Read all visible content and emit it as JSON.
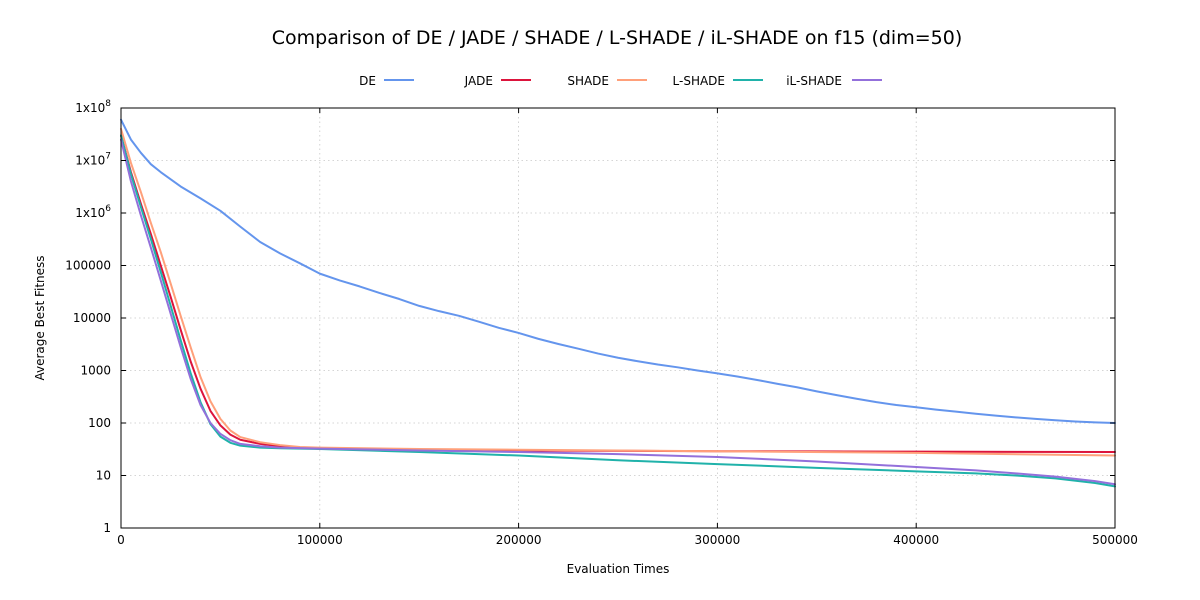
{
  "chart_data": {
    "type": "line",
    "title": "Comparison of DE / JADE / SHADE / L-SHADE / iL-SHADE on f15 (dim=50)",
    "xlabel": "Evaluation Times",
    "ylabel": "Average Best Fitness",
    "xlim": [
      0,
      500000
    ],
    "ylim": [
      1,
      100000000
    ],
    "yscale": "log",
    "grid": true,
    "legend_position": "top",
    "x_ticks": [
      {
        "value": 0,
        "label": "0"
      },
      {
        "value": 100000,
        "label": "100000"
      },
      {
        "value": 200000,
        "label": "200000"
      },
      {
        "value": 300000,
        "label": "300000"
      },
      {
        "value": 400000,
        "label": "400000"
      },
      {
        "value": 500000,
        "label": "500000"
      }
    ],
    "y_ticks": [
      {
        "value": 1,
        "label": "1",
        "sup": ""
      },
      {
        "value": 10,
        "label": "10",
        "sup": ""
      },
      {
        "value": 100,
        "label": "100",
        "sup": ""
      },
      {
        "value": 1000,
        "label": "1000",
        "sup": ""
      },
      {
        "value": 10000,
        "label": "10000",
        "sup": ""
      },
      {
        "value": 100000,
        "label": "100000",
        "sup": ""
      },
      {
        "value": 1000000,
        "label": "1x10",
        "sup": "6"
      },
      {
        "value": 10000000,
        "label": "1x10",
        "sup": "7"
      },
      {
        "value": 100000000,
        "label": "1x10",
        "sup": "8"
      }
    ],
    "series": [
      {
        "name": "DE",
        "color": "#6495ed",
        "points": [
          [
            0,
            60000000
          ],
          [
            5000,
            25000000
          ],
          [
            10000,
            14000000
          ],
          [
            15000,
            8500000
          ],
          [
            20000,
            6000000
          ],
          [
            30000,
            3200000
          ],
          [
            40000,
            1900000
          ],
          [
            50000,
            1100000
          ],
          [
            60000,
            550000
          ],
          [
            70000,
            280000
          ],
          [
            80000,
            170000
          ],
          [
            90000,
            110000
          ],
          [
            100000,
            70000
          ],
          [
            110000,
            52000
          ],
          [
            120000,
            40000
          ],
          [
            130000,
            30000
          ],
          [
            140000,
            23000
          ],
          [
            150000,
            17000
          ],
          [
            160000,
            13500
          ],
          [
            170000,
            11000
          ],
          [
            180000,
            8500
          ],
          [
            190000,
            6500
          ],
          [
            200000,
            5200
          ],
          [
            210000,
            4000
          ],
          [
            220000,
            3200
          ],
          [
            230000,
            2600
          ],
          [
            240000,
            2100
          ],
          [
            250000,
            1750
          ],
          [
            260000,
            1500
          ],
          [
            270000,
            1300
          ],
          [
            280000,
            1150
          ],
          [
            290000,
            1000
          ],
          [
            300000,
            880
          ],
          [
            310000,
            770
          ],
          [
            320000,
            660
          ],
          [
            330000,
            560
          ],
          [
            340000,
            480
          ],
          [
            350000,
            400
          ],
          [
            360000,
            340
          ],
          [
            370000,
            290
          ],
          [
            380000,
            250
          ],
          [
            390000,
            220
          ],
          [
            400000,
            200
          ],
          [
            410000,
            180
          ],
          [
            420000,
            165
          ],
          [
            430000,
            150
          ],
          [
            440000,
            138
          ],
          [
            450000,
            128
          ],
          [
            460000,
            120
          ],
          [
            470000,
            113
          ],
          [
            480000,
            107
          ],
          [
            490000,
            103
          ],
          [
            500000,
            100
          ]
        ]
      },
      {
        "name": "JADE",
        "color": "#dc143c",
        "points": [
          [
            0,
            30000000
          ],
          [
            5000,
            6000000
          ],
          [
            10000,
            1500000
          ],
          [
            15000,
            400000
          ],
          [
            20000,
            100000
          ],
          [
            25000,
            25000
          ],
          [
            30000,
            6000
          ],
          [
            35000,
            1500
          ],
          [
            40000,
            450
          ],
          [
            45000,
            170
          ],
          [
            50000,
            90
          ],
          [
            55000,
            60
          ],
          [
            60000,
            48
          ],
          [
            70000,
            40
          ],
          [
            80000,
            36
          ],
          [
            90000,
            34
          ],
          [
            100000,
            33
          ],
          [
            150000,
            31
          ],
          [
            200000,
            30
          ],
          [
            300000,
            29
          ],
          [
            400000,
            28.5
          ],
          [
            500000,
            28
          ]
        ]
      },
      {
        "name": "SHADE",
        "color": "#ffa07a",
        "points": [
          [
            0,
            40000000
          ],
          [
            5000,
            9000000
          ],
          [
            10000,
            2500000
          ],
          [
            15000,
            650000
          ],
          [
            20000,
            180000
          ],
          [
            25000,
            45000
          ],
          [
            30000,
            11000
          ],
          [
            35000,
            2800
          ],
          [
            40000,
            750
          ],
          [
            45000,
            260
          ],
          [
            50000,
            120
          ],
          [
            55000,
            72
          ],
          [
            60000,
            54
          ],
          [
            70000,
            43
          ],
          [
            80000,
            38
          ],
          [
            90000,
            35
          ],
          [
            100000,
            34
          ],
          [
            150000,
            32
          ],
          [
            200000,
            31
          ],
          [
            300000,
            29
          ],
          [
            400000,
            27
          ],
          [
            500000,
            24
          ]
        ]
      },
      {
        "name": "L-SHADE",
        "color": "#20b2aa",
        "points": [
          [
            0,
            30000000
          ],
          [
            5000,
            5500000
          ],
          [
            10000,
            1300000
          ],
          [
            15000,
            320000
          ],
          [
            20000,
            75000
          ],
          [
            25000,
            17000
          ],
          [
            30000,
            3800
          ],
          [
            35000,
            900
          ],
          [
            40000,
            250
          ],
          [
            45000,
            95
          ],
          [
            50000,
            55
          ],
          [
            55000,
            42
          ],
          [
            60000,
            37
          ],
          [
            70000,
            34
          ],
          [
            80000,
            33
          ],
          [
            100000,
            32
          ],
          [
            150000,
            28
          ],
          [
            200000,
            24
          ],
          [
            250000,
            19.5
          ],
          [
            300000,
            16.5
          ],
          [
            350000,
            14
          ],
          [
            400000,
            12
          ],
          [
            430000,
            11
          ],
          [
            450000,
            10
          ],
          [
            470000,
            8.8
          ],
          [
            490000,
            7.2
          ],
          [
            500000,
            6.2
          ]
        ]
      },
      {
        "name": "iL-SHADE",
        "color": "#9370db",
        "points": [
          [
            0,
            25000000
          ],
          [
            5000,
            4000000
          ],
          [
            10000,
            900000
          ],
          [
            15000,
            220000
          ],
          [
            20000,
            52000
          ],
          [
            25000,
            12000
          ],
          [
            30000,
            2800
          ],
          [
            35000,
            700
          ],
          [
            40000,
            220
          ],
          [
            45000,
            100
          ],
          [
            50000,
            62
          ],
          [
            55000,
            47
          ],
          [
            60000,
            40
          ],
          [
            70000,
            36
          ],
          [
            80000,
            34
          ],
          [
            100000,
            32.5
          ],
          [
            150000,
            30
          ],
          [
            200000,
            28
          ],
          [
            250000,
            25.5
          ],
          [
            300000,
            22.5
          ],
          [
            350000,
            18.5
          ],
          [
            400000,
            14.5
          ],
          [
            430000,
            12.5
          ],
          [
            450000,
            11
          ],
          [
            470000,
            9.5
          ],
          [
            490000,
            7.8
          ],
          [
            500000,
            6.8
          ]
        ]
      }
    ]
  }
}
